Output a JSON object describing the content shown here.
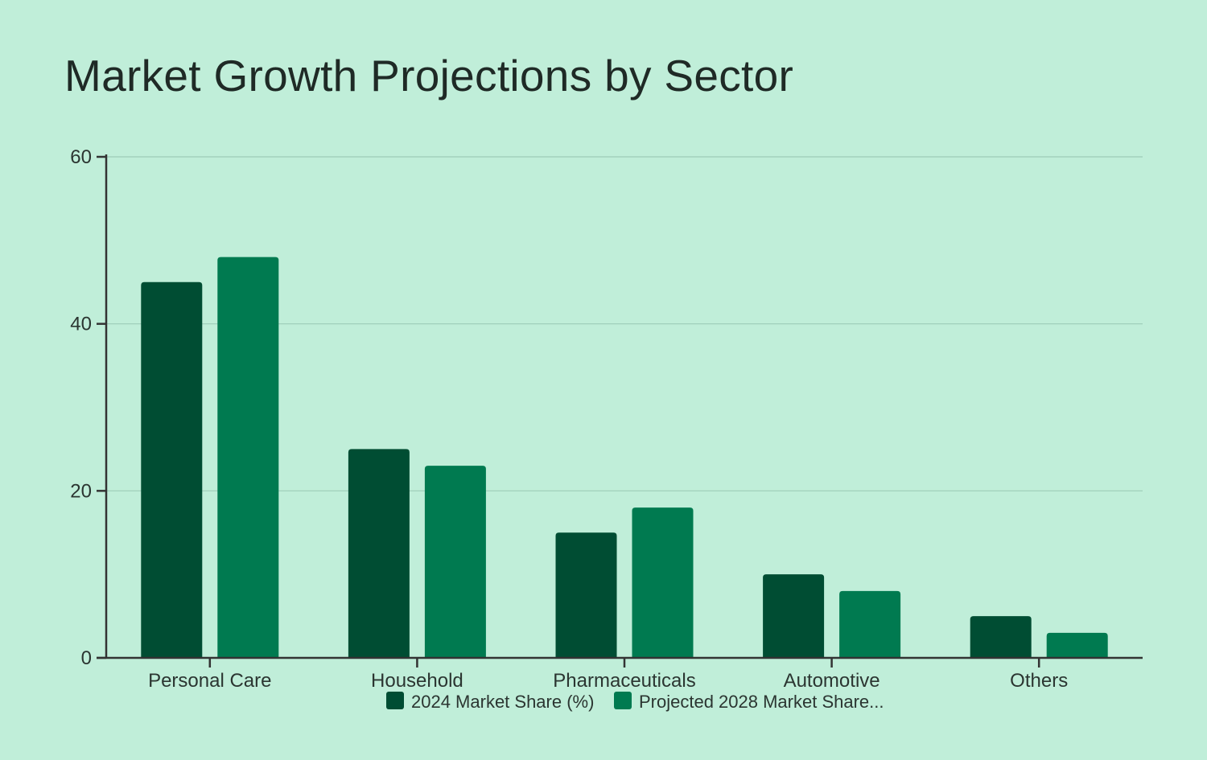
{
  "chart_data": {
    "type": "bar",
    "title": "Market Growth Projections by Sector",
    "xlabel": "",
    "ylabel": "",
    "categories": [
      "Personal Care",
      "Household",
      "Pharmaceuticals",
      "Automotive",
      "Others"
    ],
    "series": [
      {
        "name": "2024 Market Share (%)",
        "values": [
          45,
          25,
          15,
          10,
          5
        ],
        "color": "#004d33"
      },
      {
        "name": "Projected 2028 Market Share...",
        "values": [
          48,
          23,
          18,
          8,
          3
        ],
        "color": "#007a50"
      }
    ],
    "ylim": [
      0,
      60
    ],
    "yticks": [
      0,
      20,
      40,
      60
    ],
    "grid": true,
    "legend_position": "bottom-center",
    "colors": {
      "background": "#c0eed9",
      "gridline": "#9dccb8",
      "axis": "#333333"
    }
  }
}
